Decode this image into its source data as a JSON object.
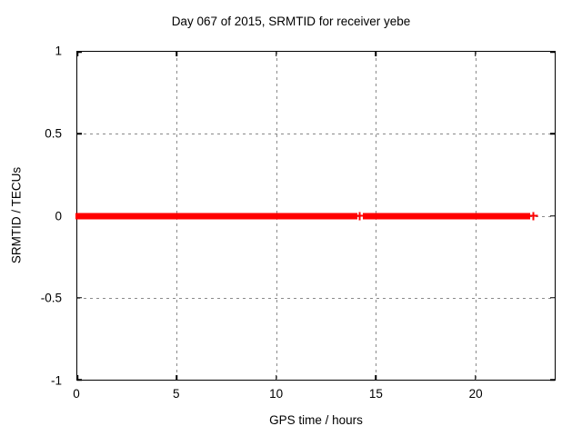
{
  "chart_data": {
    "type": "scatter",
    "title": "Day 067 of 2015, SRMTID for receiver yebe",
    "xlabel": "GPS time / hours",
    "ylabel": "SRMTID / TECUs",
    "xlim": [
      0,
      24
    ],
    "ylim": [
      -1,
      1
    ],
    "grid": true,
    "legend": "none",
    "xticks": [
      {
        "v": 0,
        "label": "0"
      },
      {
        "v": 5,
        "label": "5"
      },
      {
        "v": 10,
        "label": "10"
      },
      {
        "v": 15,
        "label": "15"
      },
      {
        "v": 20,
        "label": "20"
      }
    ],
    "yticks": [
      {
        "v": 1,
        "label": "1"
      },
      {
        "v": 0.5,
        "label": "0.5"
      },
      {
        "v": 0,
        "label": "0"
      },
      {
        "v": -0.5,
        "label": "-0.5"
      },
      {
        "v": -1,
        "label": "-1"
      }
    ],
    "series": [
      {
        "name": "SRMTID",
        "color": "#ff0000",
        "marker": "plus",
        "y": 0,
        "segments_x": [
          [
            0,
            14.08
          ],
          [
            14.35,
            22.75
          ]
        ],
        "isolated_points_x": [
          14.2,
          22.93
        ]
      }
    ],
    "colors": {
      "series_red": "#ff0000",
      "grid": "#8a8a8a",
      "border": "#000000",
      "background": "#ffffff"
    }
  }
}
